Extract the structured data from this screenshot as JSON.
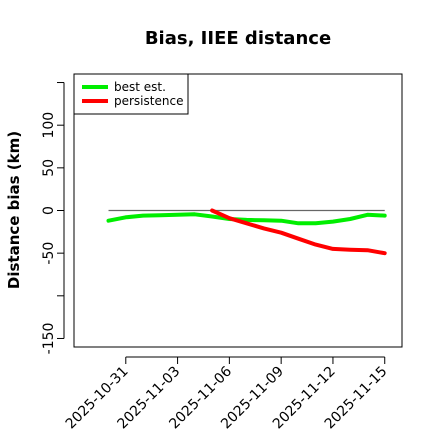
{
  "chart_data": {
    "type": "line",
    "title": "Bias, IIEE distance",
    "xlabel": "",
    "ylabel": "Distance bias (km)",
    "xlim": [
      "2025-10-28",
      "2025-11-16"
    ],
    "ylim": [
      -160,
      160
    ],
    "x_ticks": [
      "2025-10-31",
      "2025-11-03",
      "2025-11-06",
      "2025-11-09",
      "2025-11-12",
      "2025-11-15"
    ],
    "y_ticks": [
      -150,
      -100,
      -50,
      0,
      50,
      100,
      150
    ],
    "y_tick_labels": [
      "-150",
      "",
      "-50",
      "0",
      "50",
      "100",
      ""
    ],
    "reference_line": 0,
    "legend": "top-left",
    "series": [
      {
        "name": "best est.",
        "color": "#00ee00",
        "points": [
          {
            "x": "2025-10-30",
            "y": -12
          },
          {
            "x": "2025-10-31",
            "y": -8
          },
          {
            "x": "2025-11-01",
            "y": -6
          },
          {
            "x": "2025-11-02",
            "y": -5.5
          },
          {
            "x": "2025-11-03",
            "y": -5
          },
          {
            "x": "2025-11-04",
            "y": -4.5
          },
          {
            "x": "2025-11-05",
            "y": -7
          },
          {
            "x": "2025-11-06",
            "y": -10
          },
          {
            "x": "2025-11-07",
            "y": -11
          },
          {
            "x": "2025-11-08",
            "y": -11.5
          },
          {
            "x": "2025-11-09",
            "y": -12
          },
          {
            "x": "2025-11-10",
            "y": -15
          },
          {
            "x": "2025-11-11",
            "y": -15
          },
          {
            "x": "2025-11-12",
            "y": -13
          },
          {
            "x": "2025-11-13",
            "y": -10
          },
          {
            "x": "2025-11-14",
            "y": -5
          },
          {
            "x": "2025-11-15",
            "y": -6
          }
        ]
      },
      {
        "name": "persistence",
        "color": "#ff0000",
        "points": [
          {
            "x": "2025-11-05",
            "y": 0
          },
          {
            "x": "2025-11-06",
            "y": -9
          },
          {
            "x": "2025-11-07",
            "y": -15
          },
          {
            "x": "2025-11-08",
            "y": -21
          },
          {
            "x": "2025-11-09",
            "y": -26
          },
          {
            "x": "2025-11-10",
            "y": -33
          },
          {
            "x": "2025-11-11",
            "y": -40
          },
          {
            "x": "2025-11-12",
            "y": -45
          },
          {
            "x": "2025-11-13",
            "y": -46
          },
          {
            "x": "2025-11-14",
            "y": -46.5
          },
          {
            "x": "2025-11-15",
            "y": -50
          }
        ]
      }
    ],
    "reference_color": "#666666"
  }
}
